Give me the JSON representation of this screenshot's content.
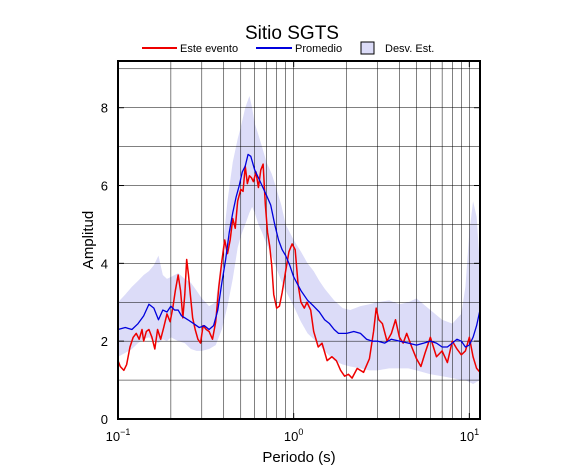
{
  "chart_data": {
    "type": "line",
    "title": "Sitio SGTS",
    "xlabel": "Periodo (s)",
    "ylabel": "Amplitud",
    "xscale": "log",
    "xlim": [
      0.1,
      11.5
    ],
    "ylim": [
      0,
      9.2
    ],
    "grid": true,
    "legend_position": "top",
    "x_ticks": [
      {
        "value": 0.1,
        "base": "10",
        "exp": "−1"
      },
      {
        "value": 1,
        "base": "10",
        "exp": "0"
      },
      {
        "value": 10,
        "base": "10",
        "exp": "1"
      }
    ],
    "y_ticks": [
      0,
      2,
      4,
      6,
      8
    ],
    "legend": {
      "este_evento": "Este evento",
      "promedio": "Promedio",
      "desv_est": "Desv. Est."
    },
    "colors": {
      "este_evento": "#ee0000",
      "promedio": "#0000dd",
      "desv_est": "#dcdcf8"
    },
    "series": [
      {
        "name": "Este evento",
        "x": [
          0.1,
          0.103,
          0.108,
          0.112,
          0.117,
          0.122,
          0.127,
          0.132,
          0.137,
          0.14,
          0.145,
          0.15,
          0.156,
          0.162,
          0.168,
          0.175,
          0.182,
          0.19,
          0.198,
          0.205,
          0.212,
          0.22,
          0.227,
          0.234,
          0.24,
          0.246,
          0.252,
          0.258,
          0.266,
          0.275,
          0.285,
          0.295,
          0.305,
          0.318,
          0.33,
          0.345,
          0.36,
          0.375,
          0.39,
          0.405,
          0.42,
          0.435,
          0.45,
          0.465,
          0.48,
          0.5,
          0.515,
          0.53,
          0.545,
          0.56,
          0.575,
          0.59,
          0.61,
          0.63,
          0.65,
          0.67,
          0.69,
          0.71,
          0.73,
          0.75,
          0.77,
          0.8,
          0.83,
          0.86,
          0.9,
          0.94,
          0.98,
          1.02,
          1.06,
          1.1,
          1.15,
          1.19,
          1.25,
          1.3,
          1.38,
          1.45,
          1.55,
          1.65,
          1.75,
          1.85,
          1.95,
          2.05,
          2.15,
          2.3,
          2.5,
          2.7,
          2.85,
          2.95,
          3.05,
          3.2,
          3.4,
          3.6,
          3.8,
          4.0,
          4.2,
          4.4,
          4.7,
          5.0,
          5.3,
          5.6,
          6.0,
          6.5,
          7.0,
          7.5,
          8.0,
          8.5,
          9.0,
          9.5,
          10.0,
          10.5,
          11.0,
          11.5
        ],
        "y": [
          1.5,
          1.35,
          1.25,
          1.4,
          1.85,
          2.1,
          2.2,
          2.05,
          2.3,
          2.0,
          2.25,
          2.3,
          2.1,
          1.8,
          2.3,
          2.05,
          2.35,
          2.7,
          2.5,
          2.85,
          3.3,
          3.7,
          3.3,
          2.6,
          3.2,
          4.1,
          3.7,
          3.2,
          2.6,
          2.3,
          2.05,
          1.95,
          2.4,
          2.3,
          2.25,
          2.05,
          2.5,
          3.4,
          4.05,
          4.6,
          4.25,
          4.6,
          5.15,
          4.9,
          5.6,
          5.9,
          5.85,
          6.5,
          6.05,
          6.25,
          6.2,
          6.1,
          6.35,
          5.95,
          6.4,
          6.55,
          5.5,
          4.8,
          4.45,
          3.95,
          3.2,
          2.85,
          2.9,
          3.25,
          3.8,
          4.3,
          4.5,
          4.35,
          3.45,
          3.0,
          2.85,
          3.0,
          2.8,
          2.25,
          1.85,
          1.95,
          1.5,
          1.6,
          1.5,
          1.25,
          1.1,
          1.15,
          1.05,
          1.3,
          1.2,
          1.55,
          2.25,
          2.85,
          2.55,
          2.45,
          2.0,
          2.2,
          2.55,
          2.1,
          1.95,
          2.2,
          1.85,
          1.55,
          1.35,
          1.7,
          2.1,
          1.6,
          1.75,
          1.45,
          2.0,
          1.8,
          1.65,
          1.75,
          2.1,
          1.6,
          1.3,
          1.2
        ]
      },
      {
        "name": "Promedio",
        "x": [
          0.1,
          0.11,
          0.12,
          0.13,
          0.14,
          0.15,
          0.16,
          0.17,
          0.18,
          0.19,
          0.2,
          0.21,
          0.22,
          0.23,
          0.24,
          0.25,
          0.27,
          0.29,
          0.31,
          0.33,
          0.35,
          0.37,
          0.39,
          0.41,
          0.43,
          0.45,
          0.47,
          0.49,
          0.51,
          0.53,
          0.55,
          0.57,
          0.6,
          0.63,
          0.66,
          0.7,
          0.74,
          0.78,
          0.82,
          0.86,
          0.9,
          0.95,
          1.0,
          1.1,
          1.2,
          1.3,
          1.4,
          1.5,
          1.6,
          1.7,
          1.8,
          1.9,
          2.0,
          2.2,
          2.4,
          2.6,
          2.8,
          3.0,
          3.3,
          3.6,
          4.0,
          4.5,
          5.0,
          5.5,
          6.0,
          6.5,
          7.0,
          7.5,
          8.0,
          8.5,
          9.0,
          9.5,
          10.0,
          10.5,
          11.0,
          11.5
        ],
        "y": [
          2.3,
          2.35,
          2.3,
          2.45,
          2.65,
          2.95,
          2.85,
          2.55,
          2.8,
          2.75,
          2.9,
          2.8,
          2.8,
          2.65,
          2.6,
          2.55,
          2.45,
          2.35,
          2.4,
          2.3,
          2.4,
          2.8,
          3.5,
          4.1,
          4.8,
          5.3,
          5.7,
          6.0,
          6.35,
          6.5,
          6.8,
          6.75,
          6.4,
          6.2,
          6.0,
          5.75,
          5.5,
          5.0,
          4.6,
          4.35,
          4.2,
          3.95,
          3.65,
          3.3,
          3.05,
          2.9,
          2.75,
          2.55,
          2.45,
          2.3,
          2.2,
          2.2,
          2.2,
          2.25,
          2.2,
          2.05,
          2.0,
          2.0,
          1.95,
          2.05,
          2.0,
          1.95,
          1.9,
          1.95,
          2.0,
          1.95,
          1.85,
          1.85,
          1.95,
          2.05,
          2.0,
          1.85,
          1.9,
          2.1,
          2.4,
          2.8
        ]
      }
    ],
    "std_band": {
      "name": "Desv. Est.",
      "x": [
        0.1,
        0.11,
        0.12,
        0.13,
        0.14,
        0.15,
        0.16,
        0.17,
        0.18,
        0.19,
        0.2,
        0.22,
        0.24,
        0.26,
        0.28,
        0.3,
        0.33,
        0.36,
        0.39,
        0.42,
        0.45,
        0.48,
        0.5,
        0.53,
        0.56,
        0.58,
        0.6,
        0.63,
        0.66,
        0.7,
        0.75,
        0.8,
        0.85,
        0.9,
        1.0,
        1.1,
        1.2,
        1.3,
        1.4,
        1.5,
        1.7,
        1.9,
        2.1,
        2.4,
        2.7,
        3.0,
        3.5,
        4.0,
        4.5,
        5.0,
        6.0,
        7.0,
        8.0,
        9.0,
        9.5,
        10.0,
        10.5,
        11.0,
        11.5
      ],
      "upper": [
        3.0,
        3.2,
        3.4,
        3.55,
        3.7,
        3.8,
        3.95,
        4.2,
        3.7,
        3.6,
        3.65,
        3.75,
        3.6,
        3.5,
        3.3,
        3.1,
        2.9,
        3.0,
        4.2,
        5.6,
        6.6,
        7.2,
        7.5,
        8.0,
        8.3,
        8.0,
        7.6,
        7.3,
        7.0,
        6.6,
        6.3,
        5.9,
        5.5,
        5.0,
        4.6,
        4.3,
        4.0,
        3.8,
        3.55,
        3.35,
        3.05,
        2.85,
        2.8,
        2.9,
        2.95,
        3.0,
        3.05,
        2.95,
        3.0,
        3.1,
        2.8,
        2.55,
        2.45,
        2.7,
        3.4,
        4.8,
        5.6,
        5.2,
        3.9
      ],
      "lower": [
        1.6,
        1.7,
        1.8,
        1.95,
        2.05,
        2.1,
        2.0,
        1.95,
        2.05,
        2.0,
        2.1,
        2.0,
        1.95,
        1.8,
        1.75,
        1.75,
        1.8,
        1.9,
        2.3,
        2.9,
        3.6,
        4.4,
        4.7,
        5.0,
        5.3,
        5.45,
        5.3,
        5.0,
        4.8,
        4.5,
        4.2,
        3.85,
        3.55,
        3.3,
        2.9,
        2.5,
        2.2,
        2.05,
        1.9,
        1.75,
        1.5,
        1.4,
        1.35,
        1.3,
        1.25,
        1.25,
        1.3,
        1.3,
        1.3,
        1.25,
        1.15,
        1.1,
        1.05,
        1.0,
        1.0,
        0.95,
        0.9,
        0.95,
        1.0
      ]
    }
  }
}
